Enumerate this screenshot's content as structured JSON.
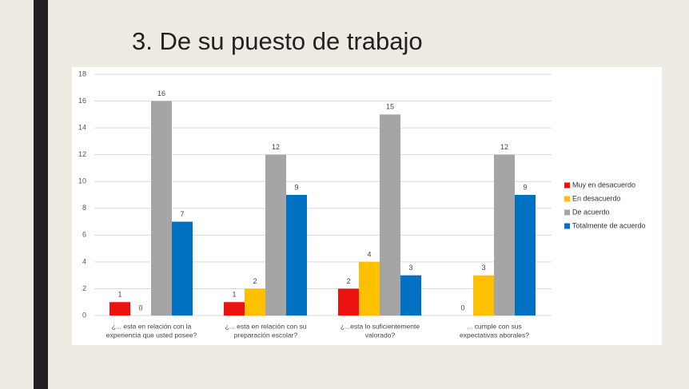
{
  "chart_data": {
    "type": "bar",
    "title": "3. De su puesto de trabajo",
    "categories": [
      [
        "¿... esta en relación con la",
        "experiencia que usted posee?"
      ],
      [
        "¿... esta en relación con su",
        "preparación escolar?"
      ],
      [
        "¿...esta lo suficientemente",
        "valorado?"
      ],
      [
        "... cumple con  sus",
        "expectativas aborales?"
      ]
    ],
    "series": [
      {
        "name": "Muy en desacuerdo",
        "color": "#ee1111",
        "values": [
          1,
          1,
          2,
          0
        ]
      },
      {
        "name": "En desacuerdo",
        "color": "#ffc000",
        "values": [
          0,
          2,
          4,
          3
        ]
      },
      {
        "name": "De acuerdo",
        "color": "#a5a5a5",
        "values": [
          16,
          12,
          15,
          12
        ]
      },
      {
        "name": "Totalmente de acuerdo",
        "color": "#0070c0",
        "values": [
          7,
          9,
          3,
          9
        ]
      }
    ],
    "ylim": [
      0,
      18
    ],
    "yticks": [
      0,
      2,
      4,
      6,
      8,
      10,
      12,
      14,
      16,
      18
    ],
    "grid": true,
    "legend": "right"
  }
}
